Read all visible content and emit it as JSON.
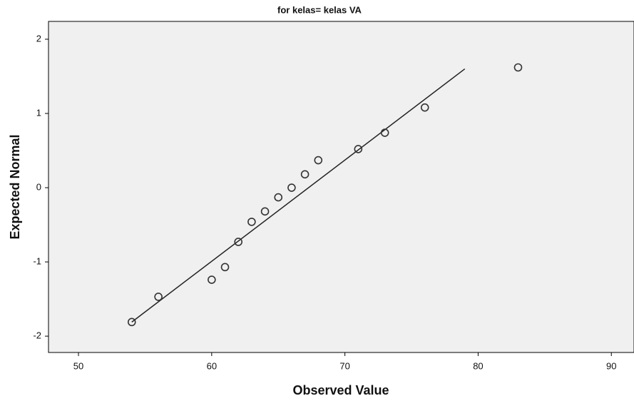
{
  "chart_data": {
    "type": "scatter",
    "title": "for kelas= kelas VA",
    "x_label": "Observed Value",
    "y_label": "Expected Normal",
    "x": [
      54,
      56,
      60,
      61,
      62,
      63,
      64,
      65,
      66,
      67,
      68,
      71,
      73,
      76,
      83
    ],
    "values": [
      -1.81,
      -1.47,
      -1.24,
      -1.07,
      -0.73,
      -0.46,
      -0.32,
      -0.13,
      0.0,
      0.18,
      0.37,
      0.52,
      0.74,
      1.08,
      1.62
    ],
    "color": "#333333",
    "reference_line": {
      "x": [
        54,
        79
      ],
      "y": [
        -1.81,
        1.6
      ]
    },
    "xlim": [
      47.75,
      91.7
    ],
    "ylim": [
      -2.22,
      2.24
    ],
    "xticks": [
      50,
      60,
      70,
      80,
      90
    ],
    "yticks": [
      -2,
      -1,
      0,
      1,
      2
    ],
    "grid": false
  }
}
